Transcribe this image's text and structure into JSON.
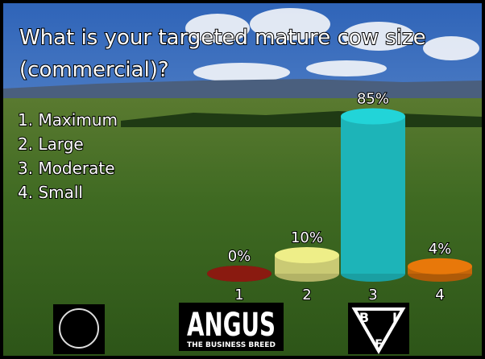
{
  "chart_data": {
    "type": "cylinder-bar",
    "title": "What is your targeted mature cow size (commercial)?",
    "title_lines": [
      "What is your targeted mature cow size",
      "(commercial)?"
    ],
    "options": [
      "1.  Maximum",
      "2.  Large",
      "3.  Moderate",
      "4.  Small"
    ],
    "categories": [
      "1",
      "2",
      "3",
      "4"
    ],
    "values": [
      0,
      10,
      85,
      4
    ],
    "value_labels": [
      "0%",
      "10%",
      "85%",
      "4%"
    ],
    "colors": [
      "#8a1a10",
      "#eeee88",
      "#22d4d8",
      "#e8780a"
    ]
  },
  "logos": {
    "angus": {
      "title": "ANGUS",
      "subtitle": "THE BUSINESS BREED"
    },
    "bif": {
      "letters": [
        "B",
        "I",
        "F"
      ]
    }
  }
}
